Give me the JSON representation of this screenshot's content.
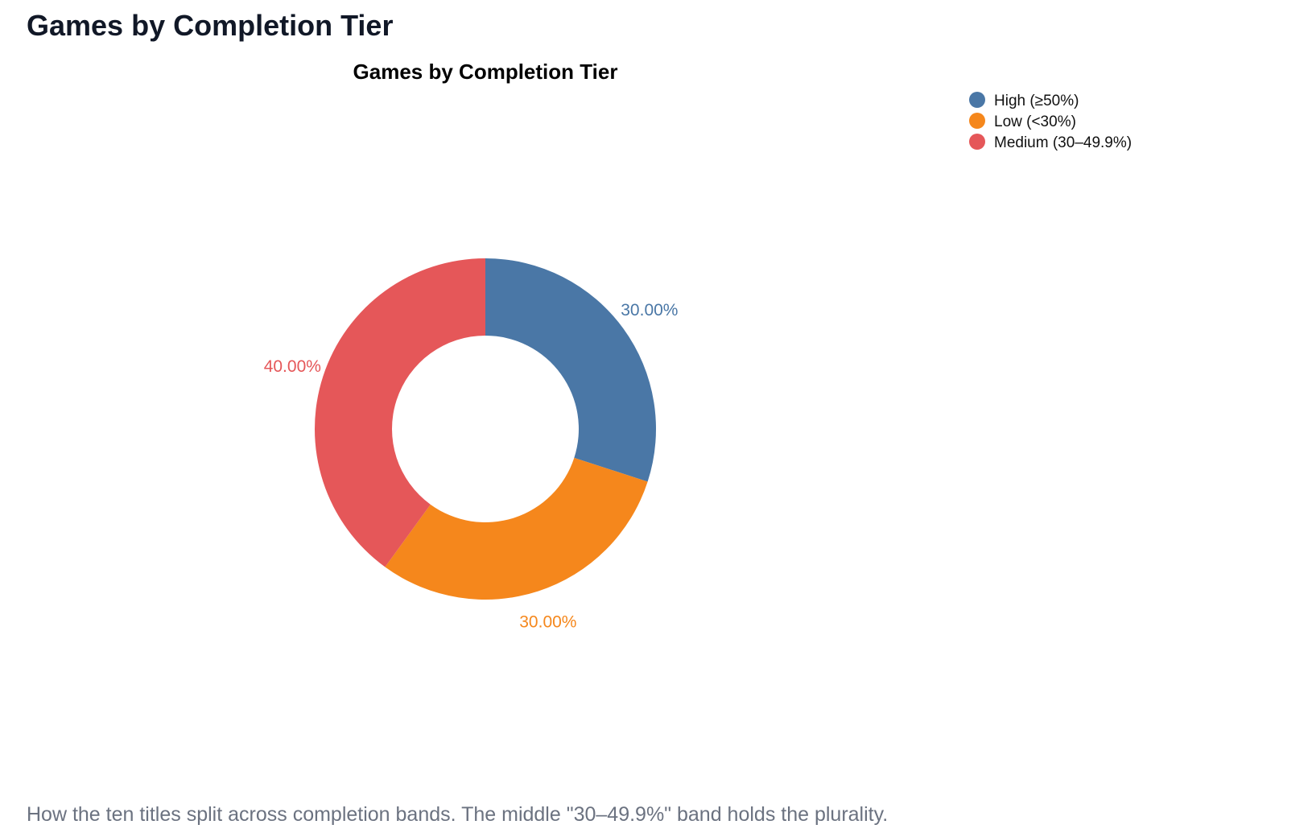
{
  "page": {
    "heading": "Games by Completion Tier",
    "caption": "How the ten titles split across completion bands. The middle \"30–49.9%\" band holds the plurality."
  },
  "chart_data": {
    "type": "pie",
    "variant": "donut",
    "title": "Games by Completion Tier",
    "legend_position": "top-right",
    "slices": [
      {
        "name": "High (≥50%)",
        "value": 3,
        "percent_label": "30.00%",
        "color": "#4a77a6"
      },
      {
        "name": "Low (<30%)",
        "value": 3,
        "percent_label": "30.00%",
        "color": "#f5871c"
      },
      {
        "name": "Medium (30–49.9%)",
        "value": 4,
        "percent_label": "40.00%",
        "color": "#e55759"
      }
    ]
  }
}
